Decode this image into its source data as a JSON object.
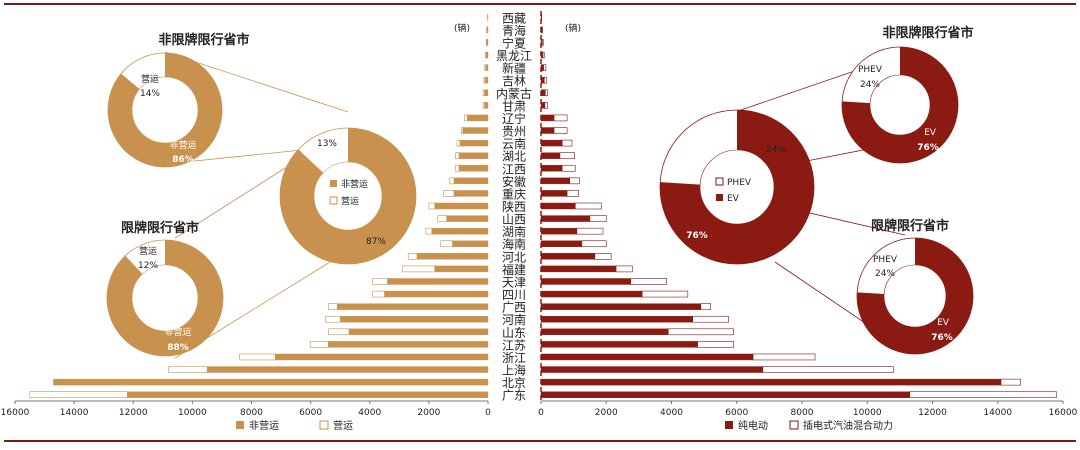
{
  "chart_data": [
    {
      "type": "bar",
      "orientation": "horizontal",
      "stacked": true,
      "unit": "(辆)",
      "categories": [
        "广东",
        "北京",
        "上海",
        "浙江",
        "江苏",
        "山东",
        "河南",
        "广西",
        "四川",
        "天津",
        "福建",
        "河北",
        "海南",
        "湖南",
        "山西",
        "陕西",
        "重庆",
        "安徽",
        "江西",
        "湖北",
        "云南",
        "贵州",
        "辽宁",
        "甘肃",
        "内蒙古",
        "吉林",
        "新疆",
        "黑龙江",
        "宁夏",
        "青海",
        "西藏"
      ],
      "series": [
        {
          "name": "非营运",
          "color": "#c8924e",
          "values": [
            12200,
            14700,
            9500,
            7200,
            5400,
            4700,
            5000,
            5100,
            3500,
            3400,
            1800,
            2400,
            1200,
            1900,
            1400,
            1800,
            1150,
            1150,
            980,
            980,
            950,
            850,
            700,
            120,
            120,
            100,
            80,
            60,
            40,
            30,
            10
          ]
        },
        {
          "name": "营运",
          "color": "#ffffff",
          "values": [
            3300,
            0,
            1300,
            1200,
            600,
            700,
            500,
            300,
            400,
            500,
            1100,
            300,
            400,
            200,
            300,
            200,
            350,
            150,
            120,
            120,
            100,
            50,
            100,
            50,
            50,
            40,
            30,
            30,
            20,
            15,
            5
          ]
        }
      ],
      "xlim": [
        0,
        16000
      ],
      "xticks": [
        "16000",
        "14000",
        "12000",
        "10000",
        "8000",
        "6000",
        "4000",
        "2000",
        "0"
      ],
      "legend_position": "bottom"
    },
    {
      "type": "bar",
      "orientation": "horizontal",
      "stacked": true,
      "unit": "(辆)",
      "categories": [
        "广东",
        "北京",
        "上海",
        "浙江",
        "江苏",
        "山东",
        "河南",
        "广西",
        "四川",
        "天津",
        "福建",
        "河北",
        "海南",
        "湖南",
        "山西",
        "陕西",
        "重庆",
        "安徽",
        "江西",
        "湖北",
        "云南",
        "贵州",
        "辽宁",
        "甘肃",
        "内蒙古",
        "吉林",
        "新疆",
        "黑龙江",
        "宁夏",
        "青海",
        "西藏"
      ],
      "series": [
        {
          "name": "纯电动",
          "color": "#8b1a12",
          "values": [
            11300,
            14100,
            6800,
            6500,
            4800,
            3900,
            4650,
            4900,
            3100,
            2750,
            2300,
            1650,
            1250,
            1100,
            1500,
            1050,
            800,
            880,
            650,
            580,
            650,
            400,
            400,
            120,
            130,
            100,
            80,
            60,
            40,
            30,
            10
          ]
        },
        {
          "name": "插电式汽油混合动力",
          "color": "#ffffff",
          "values": [
            4500,
            600,
            4000,
            1900,
            1100,
            2000,
            1100,
            300,
            1400,
            1100,
            500,
            500,
            750,
            800,
            500,
            800,
            350,
            300,
            400,
            450,
            300,
            400,
            400,
            80,
            70,
            70,
            70,
            40,
            30,
            20,
            10
          ]
        }
      ],
      "xlim": [
        0,
        16000
      ],
      "xticks": [
        "0",
        "2000",
        "4000",
        "6000",
        "8000",
        "10000",
        "12000",
        "14000",
        "16000"
      ],
      "legend_position": "bottom"
    },
    {
      "type": "pie",
      "style": "donut",
      "title": "非限牌限行省市",
      "labels": [
        "非营运",
        "营运"
      ],
      "values": [
        86,
        14
      ],
      "value_labels": [
        "86%",
        "14%"
      ]
    },
    {
      "type": "pie",
      "style": "donut",
      "title": "限牌限行省市",
      "labels": [
        "非营运",
        "营运"
      ],
      "values": [
        88,
        12
      ],
      "value_labels": [
        "88%",
        "12%"
      ]
    },
    {
      "type": "pie",
      "style": "donut",
      "labels": [
        "非营运",
        "营运"
      ],
      "values": [
        87,
        13
      ],
      "value_labels": [
        "87%",
        "13%"
      ]
    },
    {
      "type": "pie",
      "style": "donut",
      "title": "非限牌限行省市",
      "labels": [
        "EV",
        "PHEV"
      ],
      "values": [
        76,
        24
      ],
      "value_labels": [
        "76%",
        "24%"
      ]
    },
    {
      "type": "pie",
      "style": "donut",
      "title": "限牌限行省市",
      "labels": [
        "EV",
        "PHEV"
      ],
      "values": [
        76,
        24
      ],
      "value_labels": [
        "76%",
        "24%"
      ]
    },
    {
      "type": "pie",
      "style": "donut",
      "labels": [
        "EV",
        "PHEV"
      ],
      "values": [
        76,
        24
      ],
      "value_labels": [
        "76%",
        "24%"
      ]
    }
  ]
}
